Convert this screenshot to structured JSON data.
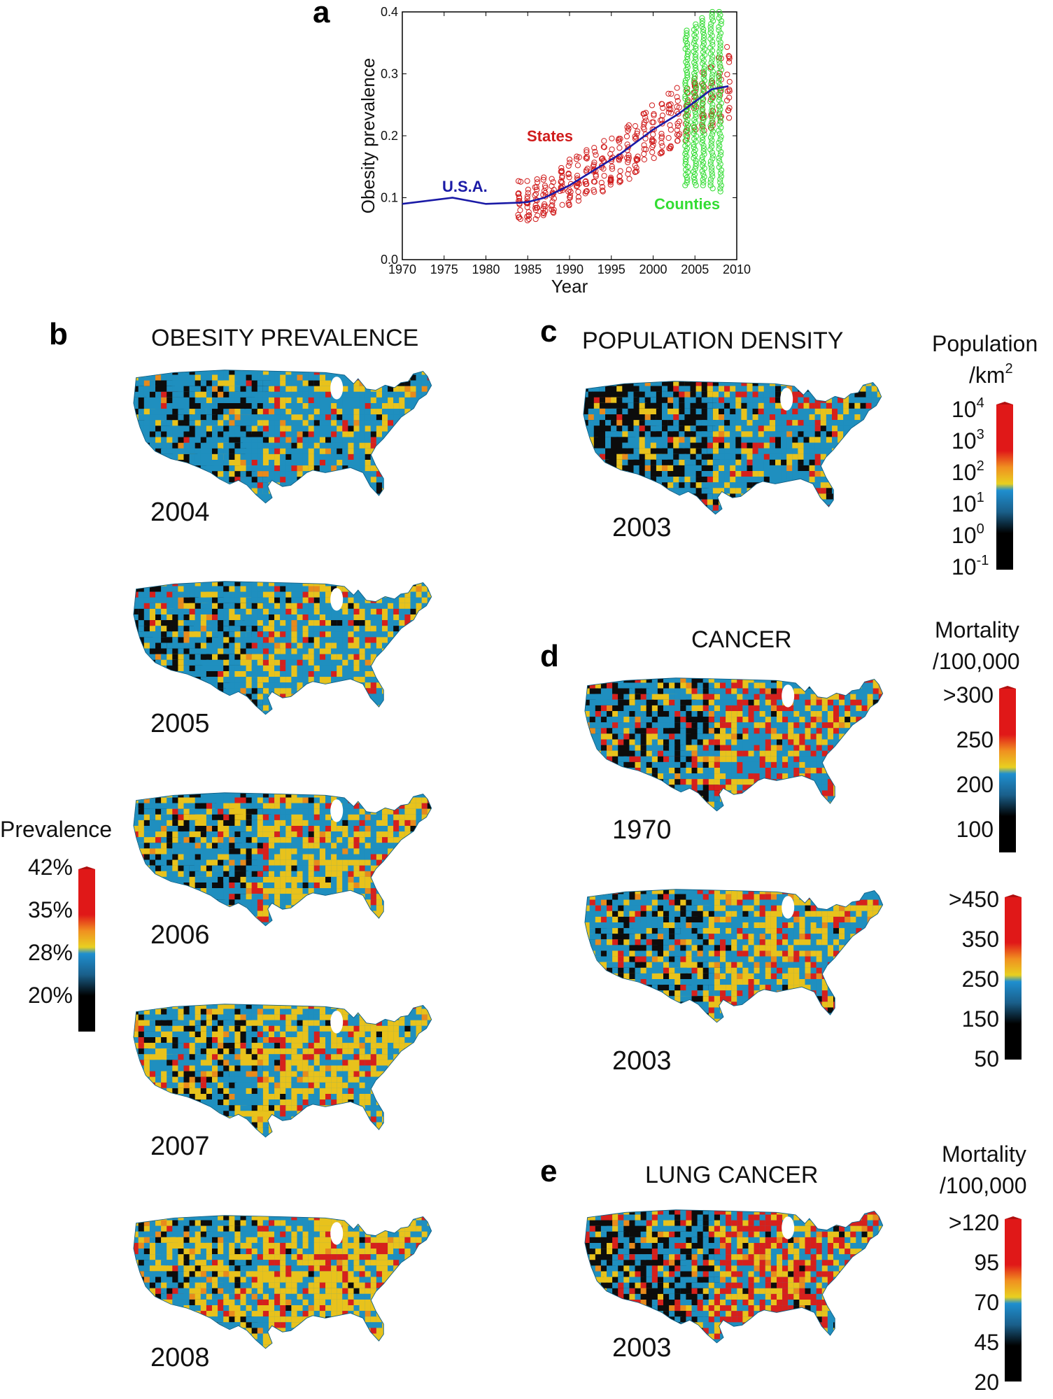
{
  "panel_a": {
    "letter": "a",
    "chart_data": {
      "type": "line+scatter",
      "xlabel": "Year",
      "ylabel": "Obesity prevalence",
      "xlim": [
        1970,
        2010
      ],
      "ylim": [
        0.0,
        0.4
      ],
      "x_ticks": [
        "1970",
        "1975",
        "1980",
        "1985",
        "1990",
        "1995",
        "2000",
        "2005",
        "2010"
      ],
      "y_ticks": [
        "0.0",
        "0.1",
        "0.2",
        "0.3",
        "0.4"
      ],
      "series": [
        {
          "name": "U.S.A.",
          "kind": "line",
          "color": "#1a1aa6",
          "x": [
            1970,
            1976,
            1980,
            1984,
            1985,
            1987,
            1990,
            1993,
            1996,
            2000,
            2003,
            2005,
            2007,
            2009
          ],
          "y": [
            0.09,
            0.1,
            0.09,
            0.092,
            0.093,
            0.1,
            0.12,
            0.145,
            0.17,
            0.21,
            0.235,
            0.255,
            0.275,
            0.28
          ]
        },
        {
          "name": "States",
          "kind": "scatter-range",
          "color": "#d01c1c",
          "x": [
            1984,
            1985,
            1986,
            1987,
            1988,
            1989,
            1990,
            1991,
            1992,
            1993,
            1994,
            1995,
            1996,
            1997,
            1998,
            1999,
            2000,
            2001,
            2002,
            2003,
            2004,
            2005,
            2006,
            2007,
            2008,
            2009
          ],
          "low": [
            0.06,
            0.06,
            0.065,
            0.07,
            0.075,
            0.08,
            0.085,
            0.09,
            0.1,
            0.105,
            0.11,
            0.12,
            0.125,
            0.13,
            0.14,
            0.15,
            0.16,
            0.165,
            0.17,
            0.18,
            0.19,
            0.2,
            0.205,
            0.21,
            0.22,
            0.21
          ],
          "high": [
            0.13,
            0.13,
            0.135,
            0.14,
            0.145,
            0.15,
            0.165,
            0.175,
            0.18,
            0.19,
            0.195,
            0.205,
            0.215,
            0.22,
            0.23,
            0.24,
            0.25,
            0.26,
            0.27,
            0.28,
            0.29,
            0.3,
            0.305,
            0.32,
            0.33,
            0.345
          ]
        },
        {
          "name": "Counties",
          "kind": "scatter-range",
          "color": "#33dd33",
          "x": [
            2004,
            2005,
            2006,
            2007,
            2008
          ],
          "low": [
            0.12,
            0.12,
            0.12,
            0.115,
            0.11
          ],
          "high": [
            0.37,
            0.38,
            0.39,
            0.4,
            0.4
          ]
        }
      ]
    }
  },
  "panel_b": {
    "letter": "b",
    "title": "OBESITY PREVALENCE",
    "years": [
      "2004",
      "2005",
      "2006",
      "2007",
      "2008"
    ],
    "colorbar": {
      "title": "Prevalence",
      "ticks": [
        "42%",
        "35%",
        "28%",
        "20%"
      ]
    }
  },
  "panel_c": {
    "letter": "c",
    "title": "POPULATION DENSITY",
    "year": "2003",
    "colorbar": {
      "title_line1": "Population",
      "title_line2": "/km",
      "title_sup": "2",
      "ticks": [
        {
          "base": "10",
          "exp": "4"
        },
        {
          "base": "10",
          "exp": "3"
        },
        {
          "base": "10",
          "exp": "2"
        },
        {
          "base": "10",
          "exp": "1"
        },
        {
          "base": "10",
          "exp": "0"
        },
        {
          "base": "10",
          "exp": "-1"
        }
      ]
    }
  },
  "panel_d": {
    "letter": "d",
    "title": "CANCER",
    "maps": [
      {
        "year": "1970",
        "colorbar": {
          "title_line1": "Mortality",
          "title_line2": "/100,000",
          "ticks": [
            ">300",
            "250",
            "200",
            "100"
          ]
        }
      },
      {
        "year": "2003",
        "colorbar": {
          "ticks": [
            ">450",
            "350",
            "250",
            "150",
            "50"
          ]
        }
      }
    ]
  },
  "panel_e": {
    "letter": "e",
    "title": "LUNG CANCER",
    "year": "2003",
    "colorbar": {
      "title_line1": "Mortality",
      "title_line2": "/100,000",
      "ticks": [
        ">120",
        "95",
        "70",
        "45",
        "20"
      ]
    }
  },
  "map_colors": {
    "black": "#0c0c0c",
    "blue": "#1f8fbf",
    "yellow": "#e8c21c",
    "orange": "#e88a1c",
    "red": "#d6201c"
  }
}
